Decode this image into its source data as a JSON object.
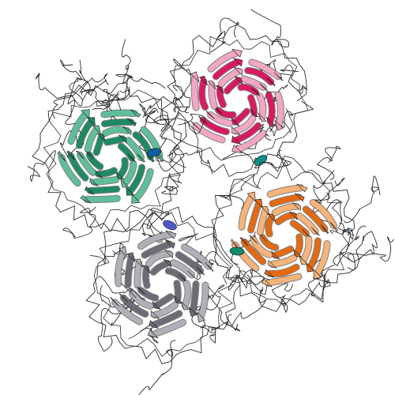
{
  "image": {
    "subject": "ribbon-model",
    "background": "#ffffff",
    "coil_color": "#2b2b2b"
  },
  "subunits": [
    {
      "id": "subunit-pink",
      "primary": "#d81b60",
      "secondary": "#f2a7c3",
      "accent": "#0f8f8a"
    },
    {
      "id": "subunit-green",
      "primary": "#1f8a63",
      "secondary": "#5fbf9a",
      "accent": "#0d5f9f"
    },
    {
      "id": "subunit-orange",
      "primary": "#e26a12",
      "secondary": "#f6b37a",
      "accent": "#118a6a"
    },
    {
      "id": "subunit-gray",
      "primary": "#6c6c76",
      "secondary": "#b0b0b8",
      "accent": "#4f56c8"
    }
  ]
}
